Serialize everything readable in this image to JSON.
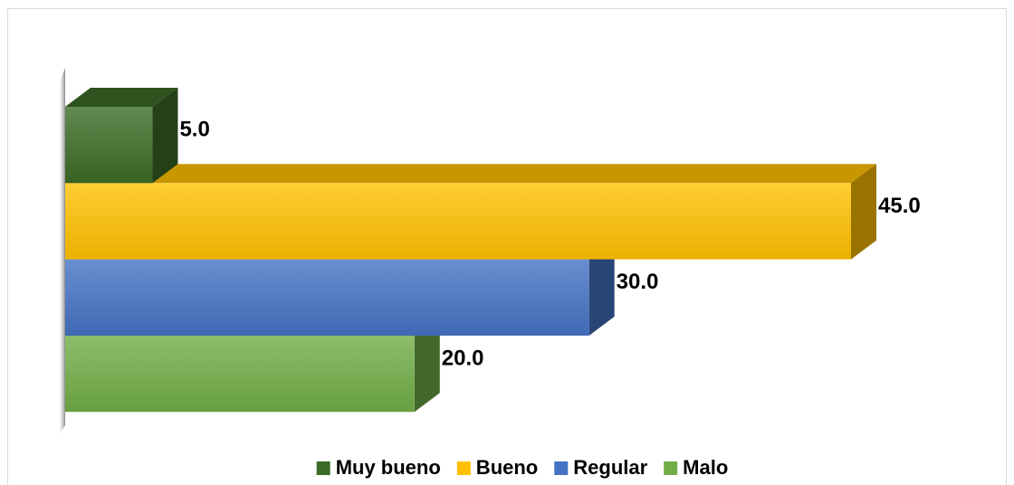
{
  "chart_data": {
    "type": "bar3d_horizontal",
    "series": [
      {
        "name": "Muy bueno",
        "color": "#3b6b26",
        "values": [
          5
        ],
        "value_labels": [
          "5.0"
        ]
      },
      {
        "name": "Bueno",
        "color": "#ffc000",
        "values": [
          45
        ],
        "value_labels": [
          "45.0"
        ]
      },
      {
        "name": "Regular",
        "color": "#4472c4",
        "values": [
          30
        ],
        "value_labels": [
          "30.0"
        ]
      },
      {
        "name": "Malo",
        "color": "#70ad47",
        "values": [
          20
        ],
        "value_labels": [
          "20.0"
        ]
      }
    ],
    "legend": "bottom"
  }
}
